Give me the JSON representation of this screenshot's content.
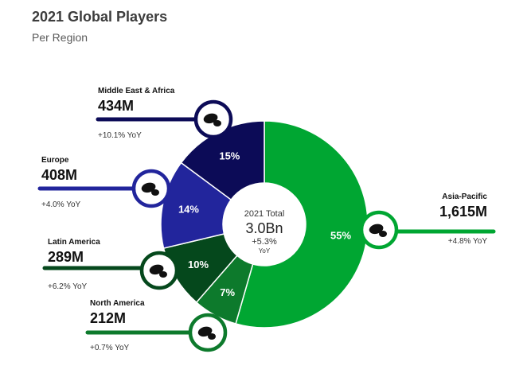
{
  "title": "2021 Global Players",
  "subtitle": "Per Region",
  "chart_data": {
    "type": "pie",
    "variant": "donut",
    "center": {
      "label": "2021 Total",
      "value": "3.0Bn",
      "change": "+5.3%",
      "change_note": "YoY"
    },
    "slices": [
      {
        "name": "Asia-Pacific",
        "value_label": "1,615M",
        "value": 1615,
        "percent": 55,
        "percent_label": "55%",
        "yoy": "+4.8% YoY",
        "color": "#00a632",
        "icon": "asia-pacific-map-icon"
      },
      {
        "name": "North America",
        "value_label": "212M",
        "value": 212,
        "percent": 7,
        "percent_label": "7%",
        "yoy": "+0.7% YoY",
        "color": "#0d7a2c",
        "icon": "north-america-map-icon"
      },
      {
        "name": "Latin America",
        "value_label": "289M",
        "value": 289,
        "percent": 10,
        "percent_label": "10%",
        "yoy": "+6.2% YoY",
        "color": "#05481c",
        "icon": "latin-america-map-icon"
      },
      {
        "name": "Europe",
        "value_label": "408M",
        "value": 408,
        "percent": 14,
        "percent_label": "14%",
        "yoy": "+4.0% YoY",
        "color": "#22259c",
        "icon": "europe-map-icon"
      },
      {
        "name": "Middle East & Africa",
        "value_label": "434M",
        "value": 434,
        "percent": 15,
        "percent_label": "15%",
        "yoy": "+10.1% YoY",
        "color": "#0c0b57",
        "icon": "middle-east-africa-map-icon"
      }
    ]
  }
}
